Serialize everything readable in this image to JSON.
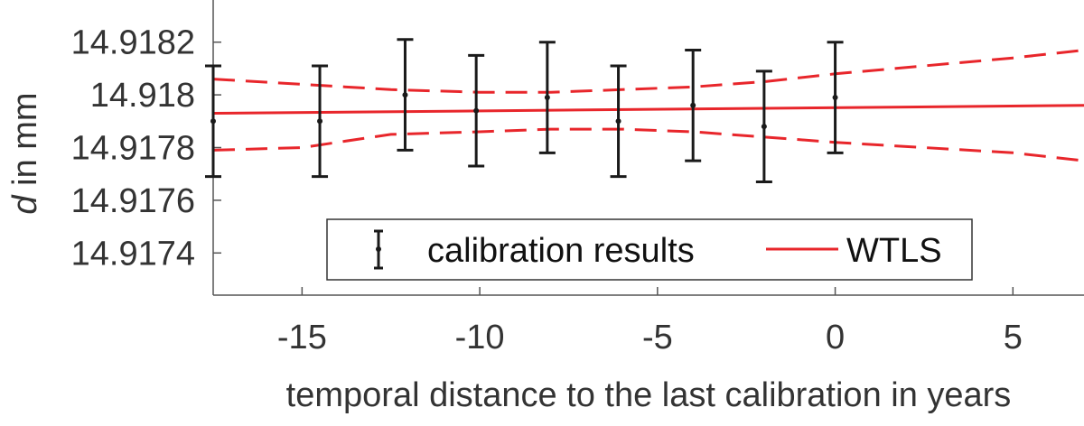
{
  "chart_data": {
    "type": "scatter",
    "xlabel": "temporal distance to the last calibration in years",
    "ylabel_symbol": "d",
    "ylabel_rest": " in mm",
    "xlim": [
      -17.5,
      7.0
    ],
    "ylim": [
      14.91724,
      14.91836
    ],
    "xticks": [
      -15,
      -10,
      -5,
      0,
      5
    ],
    "xtick_labels": [
      "-15",
      "-10",
      "-5",
      "0",
      "5"
    ],
    "yticks": [
      14.9174,
      14.9176,
      14.9178,
      14.918,
      14.9182
    ],
    "ytick_labels": [
      "14.9174",
      "14.9176",
      "14.9178",
      "14.918",
      "14.9182"
    ],
    "grid": false,
    "legend_position": "bottom-center",
    "colors": {
      "calibration": "#1a1a1a",
      "wtls": "#e8262b",
      "axis": "#555555"
    },
    "series": [
      {
        "name": "calibration results",
        "kind": "errorbar",
        "x": [
          -17.5,
          -14.5,
          -12.1,
          -10.1,
          -8.1,
          -6.1,
          -4.0,
          -2.0,
          0.0
        ],
        "y": [
          14.9179,
          14.9179,
          14.918,
          14.91794,
          14.91799,
          14.9179,
          14.91796,
          14.91788,
          14.91799
        ],
        "yerr": [
          0.00021,
          0.00021,
          0.00021,
          0.00021,
          0.00021,
          0.00021,
          0.00021,
          0.00021,
          0.00021
        ]
      },
      {
        "name": "WTLS",
        "kind": "line",
        "x": [
          -17.5,
          7.0
        ],
        "y": [
          14.91793,
          14.91796
        ]
      }
    ],
    "confidence_band": {
      "kind": "dashed",
      "x": [
        -17.5,
        -15,
        -12.5,
        -10,
        -8,
        -6,
        -4,
        -2,
        0,
        2.5,
        5,
        7
      ],
      "upper": [
        14.91806,
        14.91804,
        14.91802,
        14.91801,
        14.91801,
        14.91802,
        14.91803,
        14.91805,
        14.91808,
        14.91811,
        14.91814,
        14.91817
      ],
      "lower": [
        14.91779,
        14.9178,
        14.91785,
        14.91786,
        14.91787,
        14.91787,
        14.91786,
        14.91784,
        14.91782,
        14.9178,
        14.91778,
        14.91775
      ]
    }
  }
}
